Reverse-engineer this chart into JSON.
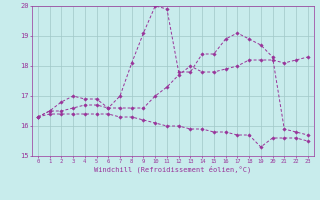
{
  "title": "",
  "xlabel": "Windchill (Refroidissement éolien,°C)",
  "ylabel": "",
  "bg_color": "#c8ecec",
  "grid_color": "#a0c8c8",
  "line_color": "#993399",
  "xlim": [
    -0.5,
    23.5
  ],
  "ylim": [
    15.0,
    20.0
  ],
  "xticks": [
    0,
    1,
    2,
    3,
    4,
    5,
    6,
    7,
    8,
    9,
    10,
    11,
    12,
    13,
    14,
    15,
    16,
    17,
    18,
    19,
    20,
    21,
    22,
    23
  ],
  "yticks": [
    15,
    16,
    17,
    18,
    19,
    20
  ],
  "line1_x": [
    0,
    1,
    2,
    3,
    4,
    5,
    6,
    7,
    8,
    9,
    10,
    11,
    12,
    13,
    14,
    15,
    16,
    17,
    18,
    19,
    20,
    21,
    22,
    23
  ],
  "line1_y": [
    16.3,
    16.5,
    16.5,
    16.6,
    16.7,
    16.7,
    16.6,
    16.6,
    16.6,
    16.6,
    17.0,
    17.3,
    17.7,
    18.0,
    17.8,
    17.8,
    17.9,
    18.0,
    18.2,
    18.2,
    18.2,
    18.1,
    18.2,
    18.3
  ],
  "line2_x": [
    0,
    1,
    2,
    3,
    4,
    5,
    6,
    7,
    8,
    9,
    10,
    11,
    12,
    13,
    14,
    15,
    16,
    17,
    18,
    19,
    20,
    21,
    22,
    23
  ],
  "line2_y": [
    16.3,
    16.5,
    16.8,
    17.0,
    16.9,
    16.9,
    16.6,
    17.0,
    18.1,
    19.1,
    20.0,
    19.9,
    17.8,
    17.8,
    18.4,
    18.4,
    18.9,
    19.1,
    18.9,
    18.7,
    18.3,
    15.9,
    15.8,
    15.7
  ],
  "line3_x": [
    0,
    1,
    2,
    3,
    4,
    5,
    6,
    7,
    8,
    9,
    10,
    11,
    12,
    13,
    14,
    15,
    16,
    17,
    18,
    19,
    20,
    21,
    22,
    23
  ],
  "line3_y": [
    16.3,
    16.4,
    16.4,
    16.4,
    16.4,
    16.4,
    16.4,
    16.3,
    16.3,
    16.2,
    16.1,
    16.0,
    16.0,
    15.9,
    15.9,
    15.8,
    15.8,
    15.7,
    15.7,
    15.3,
    15.6,
    15.6,
    15.6,
    15.5
  ]
}
